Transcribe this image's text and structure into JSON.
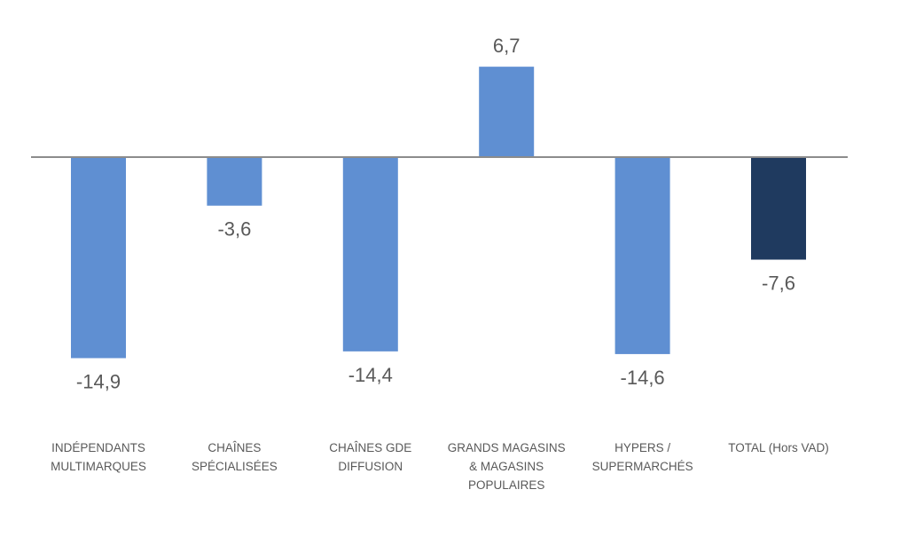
{
  "chart_data": {
    "type": "bar",
    "categories": [
      [
        "INDÉPENDANTS",
        "MULTIMARQUES"
      ],
      [
        "CHAÎNES",
        "SPÉCIALISÉES"
      ],
      [
        "CHAÎNES GDE",
        "DIFFUSION"
      ],
      [
        "GRANDS MAGASINS",
        "& MAGASINS",
        "POPULAIRES"
      ],
      [
        "HYPERS /",
        "SUPERMARCHÉS"
      ],
      [
        "TOTAL (Hors VAD)"
      ]
    ],
    "values": [
      -14.9,
      -3.6,
      -14.4,
      6.7,
      -14.6,
      -7.6
    ],
    "value_labels": [
      "-14,9",
      "-3,6",
      "-14,4",
      "6,7",
      "-14,6",
      "-7,6"
    ],
    "colors": [
      "#5f8fd2",
      "#5f8fd2",
      "#5f8fd2",
      "#5f8fd2",
      "#5f8fd2",
      "#1f3a5f"
    ],
    "axis_color": "#8c8c8c",
    "ylim": [
      -16,
      8
    ],
    "grid": false,
    "legend": "none",
    "title": "",
    "xlabel": "",
    "ylabel": ""
  }
}
